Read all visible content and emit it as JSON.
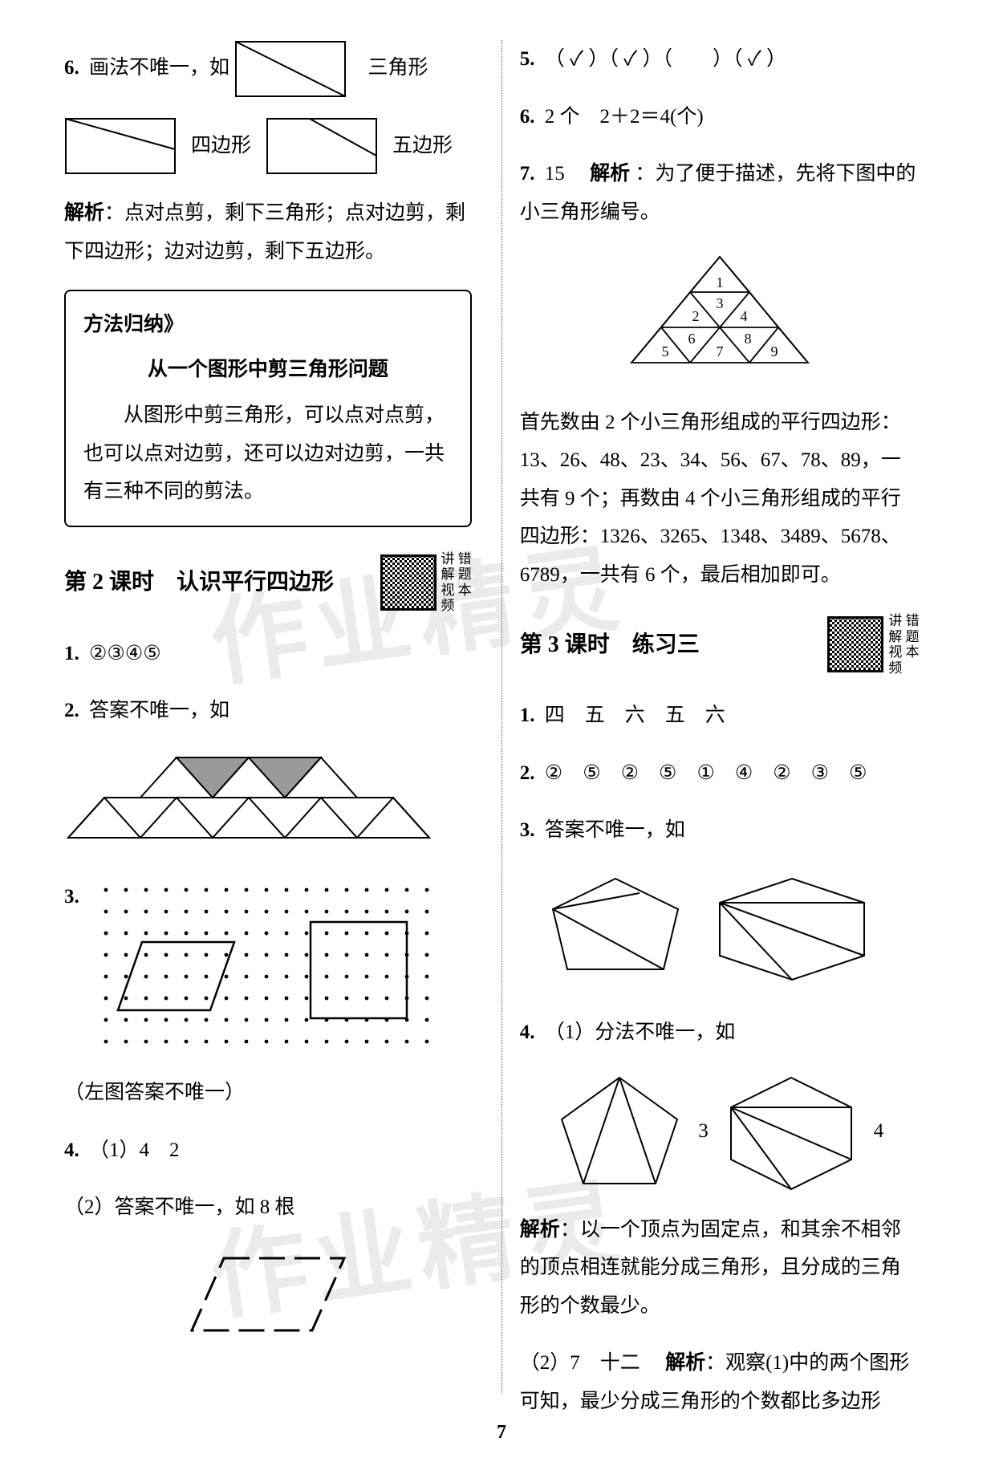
{
  "page_number": "7",
  "watermark_text": "作业精灵",
  "left": {
    "q6": {
      "num": "6.",
      "text_a": "画法不唯一，如",
      "label1": "三角形",
      "label2": "四边形",
      "label3": "五边形",
      "analysis_label": "解析",
      "analysis": "：点对点剪，剩下三角形；点对边剪，剩下四边形；边对边剪，剩下五边形。"
    },
    "method": {
      "header": "方法归纳》",
      "title": "从一个图形中剪三角形问题",
      "body": "从图形中剪三角形，可以点对点剪，也可以点对边剪，还可以边对边剪，一共有三种不同的剪法。"
    },
    "section2": {
      "title": "第 2 课时　认识平行四边形",
      "qr_lines": [
        "讲 错",
        "解 题",
        "视 本",
        "频"
      ]
    },
    "q1": {
      "num": "1.",
      "text": "②③④⑤"
    },
    "q2": {
      "num": "2.",
      "text": "答案不唯一，如"
    },
    "q3": {
      "num": "3."
    },
    "q3_note": "（左图答案不唯一）",
    "q4": {
      "num": "4.",
      "line1": "（1）4　2",
      "line2": "（2）答案不唯一，如 8 根"
    }
  },
  "right": {
    "q5": {
      "num": "5.",
      "text": "（ ✓ ）（ ✓ ）（　　）（ ✓ ）"
    },
    "q6": {
      "num": "6.",
      "text": "2 个　2＋2＝4(个)"
    },
    "q7": {
      "num": "7.",
      "head": "15　",
      "analysis_label": "解析",
      "intro": "：为了便于描述，先将下图中的小三角形编号。",
      "body1": "首先数由 2 个小三角形组成的平行四边形：13、26、48、23、34、56、67、78、89，一共有 9 个；再数由 4 个小三角形组成的平行四边形：1326、3265、1348、3489、5678、6789，一共有 6 个，最后相加即可。",
      "tri_labels": [
        "1",
        "2",
        "3",
        "4",
        "5",
        "6",
        "7",
        "8",
        "9"
      ]
    },
    "section3": {
      "title": "第 3 课时　练习三",
      "qr_lines": [
        "讲 错",
        "解 题",
        "视 本",
        "频"
      ]
    },
    "r_q1": {
      "num": "1.",
      "text": "四　五　六　五　六"
    },
    "r_q2": {
      "num": "2.",
      "text": "②　⑤　②　⑤　①　④　②　③　⑤"
    },
    "r_q3": {
      "num": "3.",
      "text": "答案不唯一，如"
    },
    "r_q4": {
      "num": "4.",
      "line1_a": "（1）分法不唯一，如",
      "fig_label_a": "3",
      "fig_label_b": "4",
      "analysis_label": "解析",
      "analysis": "：以一个顶点为固定点，和其余不相邻的顶点相连就能分成三角形，且分成的三角形的个数最少。",
      "line2": "（2）7　十二　",
      "analysis2_label": "解析",
      "analysis2": "：观察(1)中的两个图形可知，最少分成三角形的个数都比多边形"
    }
  },
  "colors": {
    "text": "#000000",
    "bg": "#ffffff",
    "divider": "#555555",
    "shade": "#9a9a9a"
  }
}
